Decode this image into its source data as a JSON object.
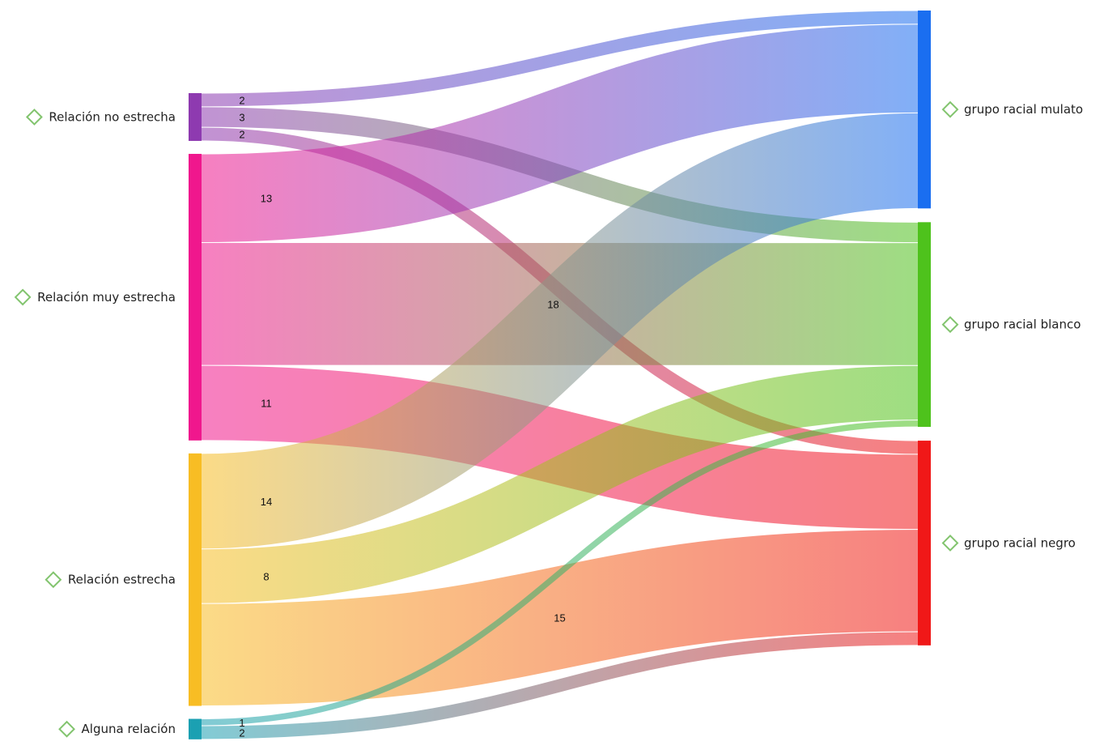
{
  "chart_data": {
    "type": "sankey",
    "title": "",
    "sources": [
      {
        "id": "no_estrecha",
        "label": "Relación no estrecha",
        "color": "#8e3ab0"
      },
      {
        "id": "muy_estrecha",
        "label": "Relación muy estrecha",
        "color": "#f0178d"
      },
      {
        "id": "estrecha",
        "label": "Relación estrecha",
        "color": "#f8bd24"
      },
      {
        "id": "alguna",
        "label": "Alguna relación",
        "color": "#1ba0b2"
      }
    ],
    "targets": [
      {
        "id": "mulato",
        "label": "grupo racial mulato",
        "color": "#1a6ef0"
      },
      {
        "id": "blanco",
        "label": "grupo racial blanco",
        "color": "#4ec21c"
      },
      {
        "id": "negro",
        "label": "grupo racial negro",
        "color": "#f01818"
      }
    ],
    "links": [
      {
        "source": "no_estrecha",
        "target": "mulato",
        "value": 2,
        "label": "2"
      },
      {
        "source": "no_estrecha",
        "target": "blanco",
        "value": 3,
        "label": "3"
      },
      {
        "source": "no_estrecha",
        "target": "negro",
        "value": 2,
        "label": "2"
      },
      {
        "source": "muy_estrecha",
        "target": "mulato",
        "value": 13,
        "label": "13"
      },
      {
        "source": "muy_estrecha",
        "target": "blanco",
        "value": 18,
        "label": "18"
      },
      {
        "source": "muy_estrecha",
        "target": "negro",
        "value": 11,
        "label": "11"
      },
      {
        "source": "estrecha",
        "target": "mulato",
        "value": 14,
        "label": "14"
      },
      {
        "source": "estrecha",
        "target": "blanco",
        "value": 8,
        "label": "8"
      },
      {
        "source": "estrecha",
        "target": "negro",
        "value": 15,
        "label": "15"
      },
      {
        "source": "alguna",
        "target": "blanco",
        "value": 1,
        "label": "1"
      },
      {
        "source": "alguna",
        "target": "negro",
        "value": 2,
        "label": "2"
      }
    ]
  }
}
